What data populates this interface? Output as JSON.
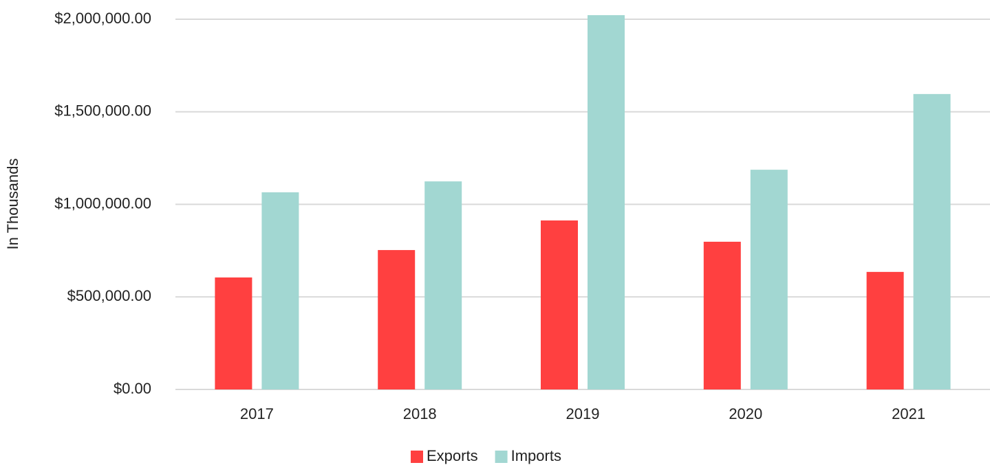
{
  "chart_data": {
    "type": "bar",
    "y_label": "In Thousands",
    "categories": [
      "2017",
      "2018",
      "2019",
      "2020",
      "2021"
    ],
    "series": [
      {
        "name": "Exports",
        "color": "#ff4040",
        "values": [
          605000,
          753000,
          913000,
          798000,
          635000
        ]
      },
      {
        "name": "Imports",
        "color": "#a2d7d2",
        "values": [
          1065000,
          1124000,
          2022000,
          1187000,
          1596000
        ]
      }
    ],
    "ylim": [
      0,
      2000000
    ],
    "yticks": [
      {
        "value": 0,
        "label": "$0.00"
      },
      {
        "value": 500000,
        "label": "$500,000.00"
      },
      {
        "value": 1000000,
        "label": "$1,000,000.00"
      },
      {
        "value": 1500000,
        "label": "$1,500,000.00"
      },
      {
        "value": 2000000,
        "label": "$2,000,000.00"
      }
    ],
    "grid": true,
    "legend": "bottom"
  }
}
